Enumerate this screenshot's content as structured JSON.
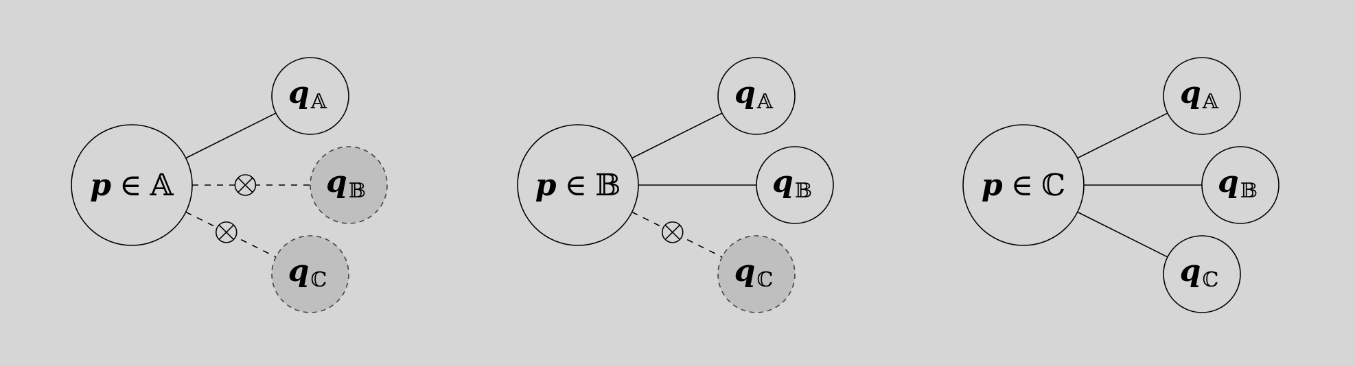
{
  "colors": {
    "background": "#d6d6d6",
    "stroke": "#000000",
    "node_fill": "#d6d6d6",
    "blocked_fill": "#bfbfbf",
    "blocked_stroke": "#444444"
  },
  "panels": [
    {
      "source": {
        "var": "p",
        "rel": "∈",
        "set": "𝔸"
      },
      "targets": [
        {
          "var": "q",
          "sub": "𝔸",
          "connected": true
        },
        {
          "var": "q",
          "sub": "𝔹",
          "connected": false
        },
        {
          "var": "q",
          "sub": "ℂ",
          "connected": false
        }
      ]
    },
    {
      "source": {
        "var": "p",
        "rel": "∈",
        "set": "𝔹"
      },
      "targets": [
        {
          "var": "q",
          "sub": "𝔸",
          "connected": true
        },
        {
          "var": "q",
          "sub": "𝔹",
          "connected": true
        },
        {
          "var": "q",
          "sub": "ℂ",
          "connected": false
        }
      ]
    },
    {
      "source": {
        "var": "p",
        "rel": "∈",
        "set": "ℂ"
      },
      "targets": [
        {
          "var": "q",
          "sub": "𝔸",
          "connected": true
        },
        {
          "var": "q",
          "sub": "𝔹",
          "connected": true
        },
        {
          "var": "q",
          "sub": "ℂ",
          "connected": true
        }
      ]
    }
  ]
}
